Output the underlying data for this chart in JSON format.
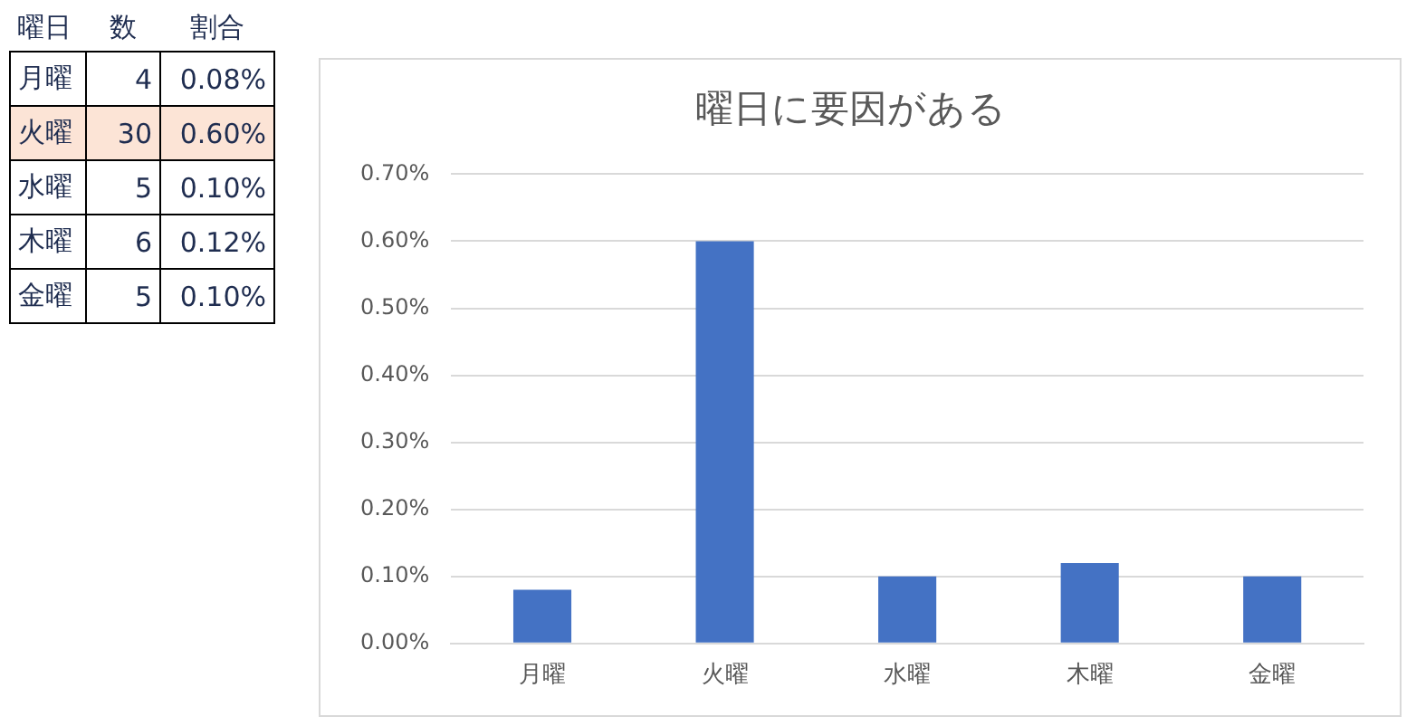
{
  "chart_data": [
    {
      "type": "other",
      "xlabel": "曜日",
      "categories": [
        "月曜",
        "火曜",
        "水曜",
        "木曜",
        "金曜"
      ],
      "series": [
        {
          "name": "数",
          "colors": [
            "#ffffff",
            "#fce4d6",
            "#ffffff",
            "#ffffff",
            "#ffffff"
          ],
          "values": [
            4,
            30,
            5,
            6,
            5
          ]
        },
        {
          "name": "割合",
          "colors": [
            "#ffffff",
            "#fce4d6",
            "#ffffff",
            "#ffffff",
            "#ffffff"
          ],
          "values": [
            0.08,
            0.6,
            0.1,
            0.12,
            0.1
          ],
          "value_labels": [
            "0.08%",
            "0.60%",
            "0.10%",
            "0.12%",
            "0.10%"
          ]
        }
      ],
      "data_labels": true
    },
    {
      "type": "bar",
      "title": "曜日に要因がある",
      "categories": [
        "月曜",
        "火曜",
        "水曜",
        "木曜",
        "金曜"
      ],
      "series": [
        {
          "color": "#4472c4",
          "values": [
            0.08,
            0.6,
            0.1,
            0.12,
            0.1
          ]
        }
      ],
      "ylim": [
        0,
        0.7
      ],
      "yticks": [
        {
          "value": 0,
          "label": "0.00%"
        },
        {
          "value": 0.1,
          "label": "0.10%"
        },
        {
          "value": 0.2,
          "label": "0.20%"
        },
        {
          "value": 0.3,
          "label": "0.30%"
        },
        {
          "value": 0.4,
          "label": "0.40%"
        },
        {
          "value": 0.5,
          "label": "0.50%"
        },
        {
          "value": 0.6,
          "label": "0.60%"
        },
        {
          "value": 0.7,
          "label": "0.70%"
        }
      ],
      "grid": "y",
      "legend": false
    }
  ]
}
